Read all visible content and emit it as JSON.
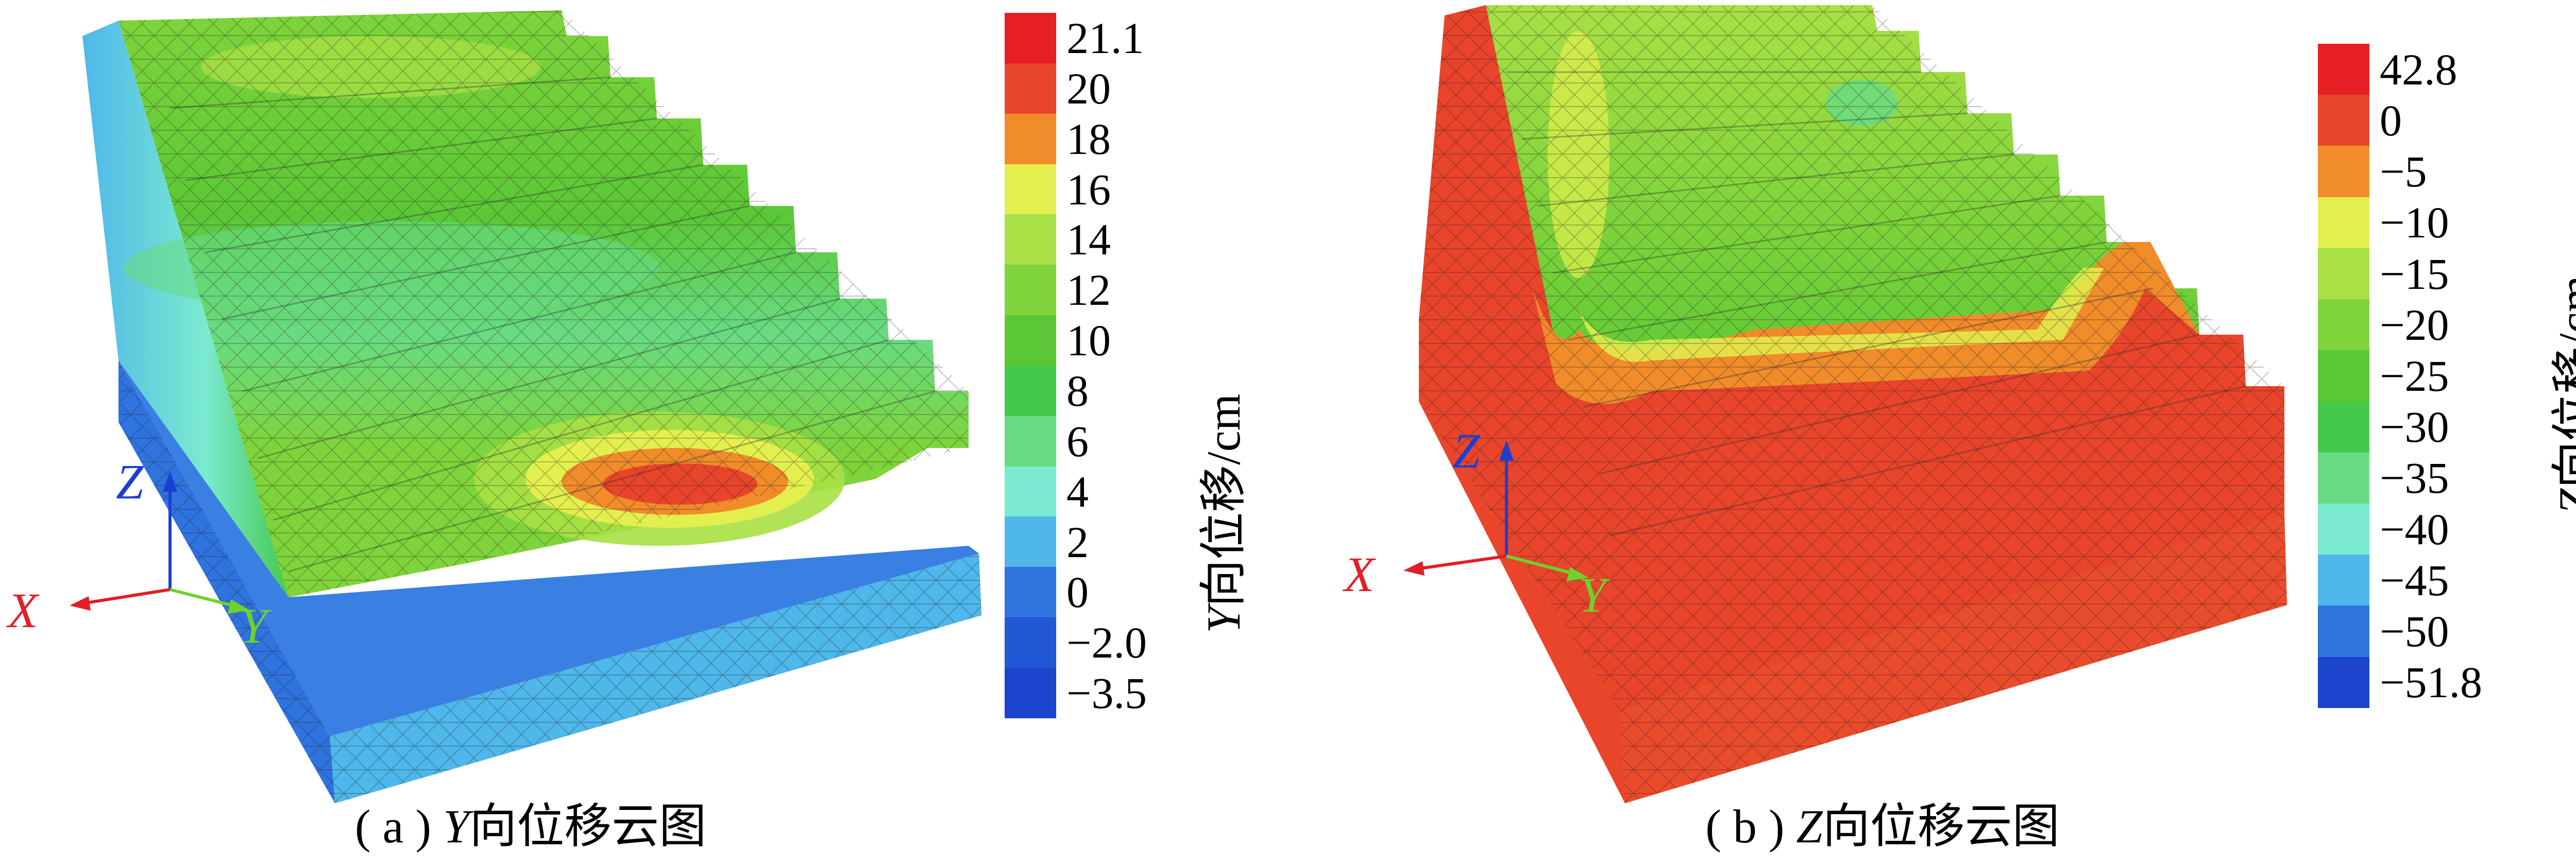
{
  "panels": [
    {
      "caption_prefix": "( a ) ",
      "caption_axis": "Y",
      "caption_text": "向位移云图",
      "legend_label_axis": "Y",
      "legend_label_text": "向位移/cm",
      "legend_ticks": [
        "21.1",
        "20",
        "18",
        "16",
        "14",
        "12",
        "10",
        "8",
        "6",
        "4",
        "2",
        "0",
        "−2.0",
        "−3.5"
      ],
      "legend_colors": [
        "#e51f23",
        "#e8452b",
        "#f08c2a",
        "#e3ef4e",
        "#a9e045",
        "#7fd43b",
        "#5cc736",
        "#45c94c",
        "#68db84",
        "#7bead0",
        "#4fb7ea",
        "#2f73de",
        "#2257d5",
        "#1c44cc"
      ],
      "axes": {
        "x": "X",
        "y": "Y",
        "z": "Z"
      }
    },
    {
      "caption_prefix": "( b ) ",
      "caption_axis": "Z",
      "caption_text": "向位移云图",
      "legend_label_axis": "Z",
      "legend_label_text": "向位移/cm",
      "legend_ticks": [
        "42.8",
        "0",
        "−5",
        "−10",
        "−15",
        "−20",
        "−25",
        "−30",
        "−35",
        "−40",
        "−45",
        "−50",
        "−51.8"
      ],
      "legend_colors": [
        "#e51f23",
        "#e8452b",
        "#f08c2a",
        "#e3ef4e",
        "#a9e045",
        "#7fd43b",
        "#5cc736",
        "#45c94c",
        "#68db84",
        "#7bead0",
        "#4fb7ea",
        "#2f73de",
        "#1c44cc"
      ],
      "axes": {
        "x": "X",
        "y": "Y",
        "z": "Z"
      }
    }
  ],
  "axis_colors": {
    "x": "#e01f26",
    "y": "#6fd22c",
    "z": "#1c3fcf"
  }
}
